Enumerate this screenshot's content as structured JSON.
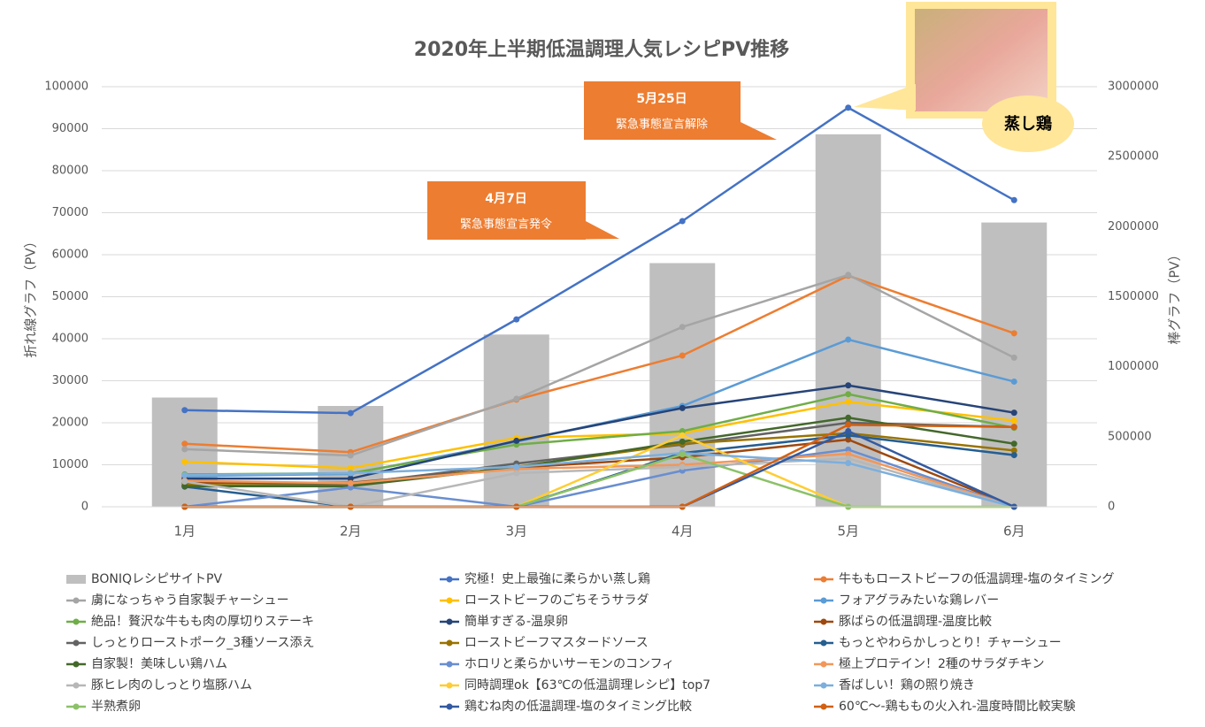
{
  "chart_data": {
    "type": "combo",
    "title": "2020年上半期低温調理人気レシピPV推移",
    "y_label": "折れ線グラフ（PV）",
    "y2_label": "棒グラフ（PV）",
    "categories": [
      "1月",
      "2月",
      "3月",
      "4月",
      "5月",
      "6月"
    ],
    "ylim": [
      0,
      100000
    ],
    "yticks": [
      0,
      10000,
      20000,
      30000,
      40000,
      50000,
      60000,
      70000,
      80000,
      90000,
      100000
    ],
    "y2lim": [
      0,
      3000000
    ],
    "y2ticks": [
      0,
      500000,
      1000000,
      1500000,
      2000000,
      2500000,
      3000000
    ],
    "grid": true,
    "series": [
      {
        "name": "BONIQレシピサイトPV",
        "type": "bar",
        "axis": "y2",
        "color": "#bfbfbf",
        "values": [
          780000,
          720000,
          1230000,
          1740000,
          2660000,
          2030000
        ]
      },
      {
        "name": "究極！史上最強に柔らかい蒸し鶏",
        "color": "#4472c4",
        "values": [
          23000,
          22300,
          44600,
          68000,
          95000,
          73000
        ]
      },
      {
        "name": "牛ももローストビーフの低温調理-塩のタイミング",
        "color": "#ed7d31",
        "values": [
          15000,
          13000,
          25500,
          36000,
          55000,
          41300
        ]
      },
      {
        "name": "虜になっちゃう自家製チャーシュー",
        "color": "#a5a5a5",
        "values": [
          13700,
          12200,
          25700,
          42800,
          55200,
          35500
        ]
      },
      {
        "name": "ローストビーフのごちそうサラダ",
        "color": "#ffc000",
        "values": [
          10700,
          9200,
          16400,
          17500,
          25000,
          20500
        ]
      },
      {
        "name": "フォアグラみたいな鶏レバー",
        "color": "#5b9bd5",
        "values": [
          7300,
          7800,
          15500,
          24000,
          39800,
          29800
        ]
      },
      {
        "name": "絶品！贅沢な牛もも肉の厚切りステーキ",
        "color": "#70ad47",
        "values": [
          7700,
          8000,
          14800,
          18000,
          26800,
          18800
        ]
      },
      {
        "name": "簡単すぎる-温泉卵",
        "color": "#264478",
        "values": [
          6700,
          6700,
          15700,
          23500,
          28900,
          22400
        ]
      },
      {
        "name": "豚ばらの低温調理-温度比較",
        "color": "#9e480e",
        "values": [
          5700,
          5700,
          9300,
          11800,
          16000,
          0
        ]
      },
      {
        "name": "しっとりローストポーク_3種ソース添え",
        "color": "#636363",
        "values": [
          5000,
          5400,
          10300,
          14800,
          20000,
          19000
        ]
      },
      {
        "name": "ローストビーフマスタードソース",
        "color": "#997300",
        "values": [
          5200,
          5000,
          9500,
          15000,
          17500,
          13400
        ]
      },
      {
        "name": "もっとやわらかしっとり！チャーシュー",
        "color": "#255e91",
        "values": [
          4800,
          0,
          0,
          12800,
          17000,
          12300
        ]
      },
      {
        "name": "自家製！美味しい鶏ハム",
        "color": "#43682b",
        "values": [
          4900,
          4900,
          9400,
          15500,
          21200,
          15000
        ]
      },
      {
        "name": "ホロリと柔らかいサーモンのコンフィ",
        "color": "#698ed0",
        "values": [
          0,
          4600,
          0,
          8600,
          13600,
          0
        ]
      },
      {
        "name": "極上プロテイン！2種のサラダチキン",
        "color": "#f1975a",
        "values": [
          6200,
          5600,
          9000,
          10000,
          12600,
          0
        ]
      },
      {
        "name": "豚ヒレ肉のしっとり塩豚ハム",
        "color": "#b7b7b7",
        "values": [
          6000,
          0,
          8000,
          9500,
          11500,
          0
        ]
      },
      {
        "name": "同時調理ok【63℃の低温調理レシピ】top7",
        "color": "#ffcd33",
        "values": [
          0,
          0,
          0,
          17000,
          0,
          0
        ]
      },
      {
        "name": "香ばしい！鶏の照り焼き",
        "color": "#7cafdd",
        "values": [
          7500,
          8000,
          9500,
          12800,
          10400,
          0
        ]
      },
      {
        "name": "半熟煮卵",
        "color": "#8cc168",
        "values": [
          0,
          0,
          0,
          12500,
          0,
          0
        ]
      },
      {
        "name": "鶏むね肉の低温調理-塩のタイミング比較",
        "color": "#335aa1",
        "values": [
          0,
          0,
          0,
          0,
          18000,
          0
        ]
      },
      {
        "name": "60℃〜-鶏ももの火入れ-温度時間比較実験",
        "color": "#d26012",
        "values": [
          0,
          0,
          0,
          0,
          19500,
          19000
        ]
      }
    ],
    "annotations": [
      {
        "title": "4月7日",
        "text": "緊急事態宣言発令"
      },
      {
        "title": "5月25日",
        "text": "緊急事態宣言解除"
      }
    ],
    "photo_label": "蒸し鶏"
  }
}
